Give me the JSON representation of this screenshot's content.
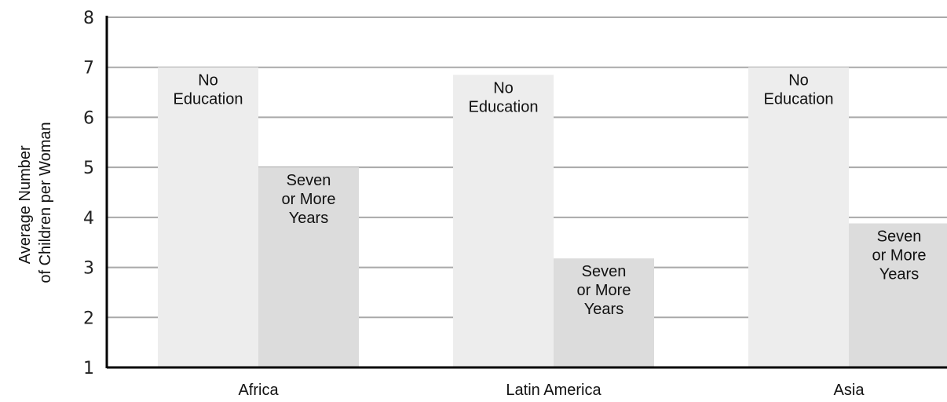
{
  "chart_data": {
    "type": "bar",
    "categories": [
      "Africa",
      "Latin America",
      "Asia"
    ],
    "series": [
      {
        "name": "No Education",
        "label_lines": [
          "No",
          "Education"
        ],
        "values": [
          7.0,
          6.85,
          7.0
        ],
        "color": "#ededed"
      },
      {
        "name": "Seven or More Years",
        "label_lines": [
          "Seven",
          "or More",
          "Years"
        ],
        "values": [
          5.0,
          3.18,
          3.88
        ],
        "color": "#dcdcdc"
      }
    ],
    "ylabel_lines": [
      "Average Number",
      "of Children per Woman"
    ],
    "ylim": [
      1,
      8
    ],
    "yticks": [
      1,
      2,
      3,
      4,
      5,
      6,
      7,
      8
    ],
    "grid": true,
    "colors": {
      "grid": "#a9a9a9",
      "axis": "#000000"
    }
  }
}
